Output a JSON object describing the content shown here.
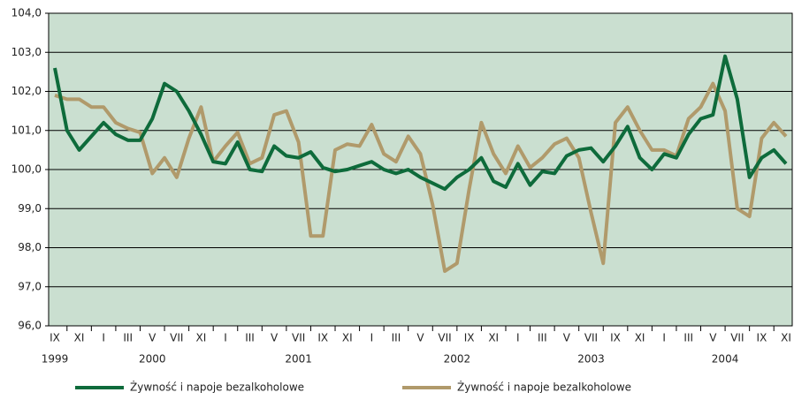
{
  "chart_data": {
    "type": "line",
    "categories": [
      "IX",
      null,
      "XI",
      null,
      "I",
      null,
      "III",
      null,
      "V",
      null,
      "VII",
      null,
      "XI",
      null,
      "I",
      null,
      "III",
      null,
      "V",
      null,
      "VII",
      null,
      "IX",
      null,
      "XI",
      null,
      "I",
      null,
      "III",
      null,
      "V",
      null,
      "VII",
      null,
      "IX",
      null,
      "XI",
      null,
      "I",
      null,
      "III",
      null,
      "V",
      null,
      "VII",
      null,
      "IX",
      null,
      "XI",
      null,
      "I",
      null,
      "III",
      null,
      "V",
      null,
      "VII",
      null,
      "IX",
      null,
      "XI"
    ],
    "category_years": [
      "1999",
      null,
      null,
      null,
      null,
      null,
      null,
      null,
      "2000",
      null,
      null,
      null,
      null,
      null,
      null,
      null,
      null,
      null,
      null,
      null,
      "2001",
      null,
      null,
      null,
      null,
      null,
      null,
      null,
      null,
      null,
      null,
      null,
      null,
      "2002",
      null,
      null,
      null,
      null,
      null,
      null,
      null,
      null,
      null,
      null,
      "2003",
      null,
      null,
      null,
      null,
      null,
      null,
      null,
      null,
      null,
      null,
      "2004",
      null,
      null,
      null,
      null,
      null
    ],
    "series": [
      {
        "name": "Żywność i napoje bezalkoholowe",
        "color": "#0e6b3b",
        "values": [
          102.6,
          101.0,
          100.5,
          100.85,
          101.2,
          100.9,
          100.75,
          100.75,
          101.3,
          102.2,
          102.0,
          101.5,
          100.9,
          100.2,
          100.15,
          100.7,
          100.0,
          99.95,
          100.6,
          100.35,
          100.3,
          100.45,
          100.05,
          99.95,
          100.0,
          100.1,
          100.2,
          100.0,
          99.9,
          100.0,
          99.8,
          99.65,
          99.5,
          99.8,
          100.0,
          100.3,
          99.7,
          99.55,
          100.15,
          99.6,
          99.95,
          99.9,
          100.35,
          100.5,
          100.55,
          100.2,
          100.6,
          101.1,
          100.3,
          100.0,
          100.4,
          100.3,
          100.9,
          101.3,
          101.4,
          102.9,
          101.8,
          99.8,
          100.3,
          100.5,
          100.15
        ]
      },
      {
        "name": "Żywność i napoje bezalkoholowe",
        "color": "#b09a6b",
        "values": [
          101.9,
          101.8,
          101.8,
          101.6,
          101.6,
          101.2,
          101.05,
          100.95,
          99.9,
          100.3,
          99.8,
          100.8,
          101.6,
          100.2,
          100.6,
          100.95,
          100.15,
          100.3,
          101.4,
          101.5,
          100.7,
          98.3,
          98.3,
          100.5,
          100.65,
          100.6,
          101.15,
          100.4,
          100.2,
          100.85,
          100.4,
          99.1,
          97.4,
          97.6,
          99.5,
          101.2,
          100.4,
          99.9,
          100.6,
          100.05,
          100.3,
          100.65,
          100.8,
          100.3,
          98.9,
          97.6,
          101.2,
          101.6,
          101.0,
          100.5,
          100.5,
          100.35,
          101.3,
          101.6,
          102.2,
          101.5,
          99.0,
          98.8,
          100.8,
          101.2,
          100.85
        ]
      }
    ],
    "ylim": [
      96,
      104
    ],
    "yticks": [
      {
        "value": 96,
        "label": "96,0"
      },
      {
        "value": 97,
        "label": "97,0"
      },
      {
        "value": 98,
        "label": "98,0"
      },
      {
        "value": 99,
        "label": "99,0"
      },
      {
        "value": 100,
        "label": "100,0"
      },
      {
        "value": 101,
        "label": "101,0"
      },
      {
        "value": 102,
        "label": "102,0"
      },
      {
        "value": 103,
        "label": "103,0"
      },
      {
        "value": 104,
        "label": "104,0"
      }
    ],
    "grid": true,
    "legend": "bottom",
    "background": "#cadfd0"
  }
}
